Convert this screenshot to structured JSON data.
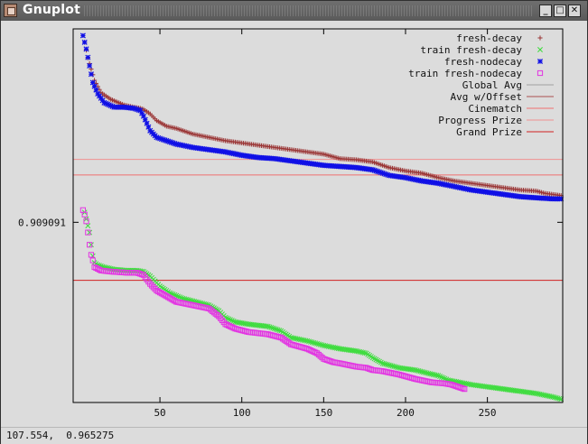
{
  "window": {
    "title": "Gnuplot",
    "minimize_icon": "minimize-icon",
    "maximize_icon": "maximize-icon",
    "close_icon": "close-icon"
  },
  "status_bar": {
    "coordinates": "107.554,  0.965275"
  },
  "chart_data": {
    "type": "scatter",
    "title": "",
    "xlabel": "",
    "ylabel": "",
    "xlim": [
      -3,
      296
    ],
    "x_ticks": [
      "50",
      "100",
      "150",
      "200",
      "250"
    ],
    "x_tick_values": [
      50,
      100,
      150,
      200,
      250
    ],
    "y_ticks": [
      "0.909091"
    ],
    "y_tick_values": [
      0.909091
    ],
    "grid": false,
    "legend_placement": "top-right",
    "series": [
      {
        "name": "fresh-decay",
        "marker": "+",
        "color": "#9a3434",
        "x": [
          4,
          6,
          8,
          10,
          14,
          20,
          28,
          34,
          38,
          40,
          44,
          48,
          54,
          60,
          70,
          80,
          90,
          100,
          110,
          120,
          130,
          140,
          150,
          160,
          170,
          180,
          190,
          200,
          210,
          220,
          230,
          240,
          250,
          260,
          270,
          280,
          285,
          290,
          295
        ],
        "y": [
          1.07,
          1.056,
          1.046,
          1.036,
          1.025,
          1.019,
          1.014,
          1.012,
          1.011,
          1.01,
          1.006,
          1.0,
          0.995,
          0.993,
          0.988,
          0.985,
          0.982,
          0.98,
          0.978,
          0.976,
          0.974,
          0.972,
          0.97,
          0.966,
          0.965,
          0.963,
          0.958,
          0.955,
          0.953,
          0.949,
          0.946,
          0.944,
          0.942,
          0.94,
          0.938,
          0.937,
          0.935,
          0.934,
          0.933
        ]
      },
      {
        "name": "train fresh-decay",
        "marker": "x",
        "color": "#3cdc3c",
        "x": [
          4,
          5,
          6,
          7,
          8,
          9,
          10,
          12,
          16,
          22,
          30,
          36,
          40,
          44,
          50,
          56,
          64,
          72,
          80,
          86,
          90,
          96,
          104,
          116,
          124,
          130,
          140,
          150,
          160,
          170,
          176,
          180,
          186,
          196,
          206,
          214,
          220,
          226,
          240,
          250,
          260,
          270,
          280,
          290,
          295
        ],
        "y": [
          0.918,
          0.912,
          0.906,
          0.9,
          0.889,
          0.879,
          0.873,
          0.871,
          0.869,
          0.867,
          0.866,
          0.866,
          0.865,
          0.861,
          0.852,
          0.846,
          0.841,
          0.838,
          0.835,
          0.83,
          0.824,
          0.82,
          0.818,
          0.816,
          0.812,
          0.806,
          0.803,
          0.799,
          0.796,
          0.794,
          0.792,
          0.788,
          0.783,
          0.779,
          0.777,
          0.774,
          0.772,
          0.768,
          0.764,
          0.762,
          0.76,
          0.758,
          0.756,
          0.753,
          0.751
        ]
      },
      {
        "name": "fresh-nodecay",
        "marker": "*",
        "color": "#1010e6",
        "x": [
          3,
          5,
          7,
          9,
          12,
          16,
          22,
          28,
          34,
          38,
          40,
          44,
          48,
          54,
          60,
          70,
          80,
          90,
          100,
          110,
          120,
          130,
          140,
          150,
          160,
          170,
          180,
          190,
          200,
          210,
          220,
          230,
          240,
          250,
          260,
          270,
          280,
          290,
          295
        ],
        "y": [
          1.076,
          1.064,
          1.049,
          1.034,
          1.024,
          1.016,
          1.012,
          1.012,
          1.011,
          1.009,
          1.004,
          0.991,
          0.985,
          0.982,
          0.979,
          0.976,
          0.974,
          0.972,
          0.969,
          0.967,
          0.966,
          0.964,
          0.962,
          0.96,
          0.959,
          0.958,
          0.956,
          0.951,
          0.949,
          0.946,
          0.944,
          0.941,
          0.938,
          0.936,
          0.934,
          0.932,
          0.931,
          0.93,
          0.93
        ]
      },
      {
        "name": "train fresh-nodecay",
        "marker": "square",
        "color": "#e236e2",
        "x": [
          3,
          4,
          5,
          6,
          7,
          8,
          9,
          10,
          14,
          20,
          30,
          36,
          40,
          44,
          48,
          54,
          60,
          70,
          80,
          86,
          90,
          96,
          104,
          116,
          124,
          130,
          140,
          146,
          150,
          156,
          160,
          170,
          176,
          180,
          186,
          196,
          206,
          216,
          224,
          228,
          232,
          236
        ],
        "y": [
          0.92,
          0.916,
          0.91,
          0.9,
          0.889,
          0.88,
          0.875,
          0.869,
          0.866,
          0.865,
          0.864,
          0.864,
          0.862,
          0.854,
          0.848,
          0.843,
          0.838,
          0.835,
          0.832,
          0.825,
          0.818,
          0.814,
          0.811,
          0.809,
          0.806,
          0.8,
          0.796,
          0.792,
          0.787,
          0.784,
          0.783,
          0.78,
          0.779,
          0.777,
          0.776,
          0.773,
          0.769,
          0.766,
          0.765,
          0.764,
          0.762,
          0.76
        ]
      }
    ],
    "reference_lines": [
      {
        "name": "Global Avg",
        "color": "#a0a0a0",
        "y": null
      },
      {
        "name": "Avg w/Offset",
        "color": "#aa5050",
        "y": null
      },
      {
        "name": "Cinematch",
        "color": "#f07070",
        "y": 0.9514
      },
      {
        "name": "Progress Prize",
        "color": "#f09090",
        "y": 0.9653
      },
      {
        "name": "Grand Prize",
        "color": "#d02020",
        "y": 0.8572
      }
    ]
  }
}
